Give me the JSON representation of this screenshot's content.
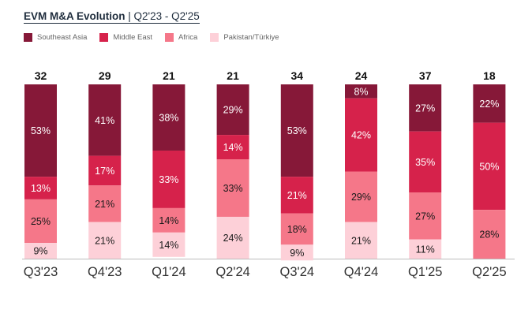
{
  "title": {
    "main": "EVM M&A Evolution",
    "separator": "|",
    "subtitle": "Q2'23 - Q2'25"
  },
  "chart_data": {
    "type": "bar",
    "stacked": true,
    "title": "EVM M&A Evolution | Q2'23 - Q2'25",
    "xlabel": "",
    "ylabel": "",
    "ylim": [
      0,
      100
    ],
    "grid": false,
    "legend_position": "top-left",
    "categories": [
      "Q3'23",
      "Q4'23",
      "Q1'24",
      "Q2'24",
      "Q3'24",
      "Q4'24",
      "Q1'25",
      "Q2'25"
    ],
    "totals": [
      32,
      29,
      21,
      21,
      34,
      24,
      37,
      18
    ],
    "series": [
      {
        "name": "Southeast Asia",
        "color": "#861838",
        "label_color": "#ffffff",
        "values": [
          53,
          41,
          38,
          29,
          53,
          8,
          27,
          22
        ]
      },
      {
        "name": "Middle East",
        "color": "#d6224b",
        "label_color": "#ffffff",
        "values": [
          13,
          17,
          33,
          14,
          21,
          42,
          35,
          50
        ]
      },
      {
        "name": "Africa",
        "color": "#f57789",
        "label_color": "#1a1a1a",
        "values": [
          25,
          21,
          14,
          33,
          18,
          29,
          27,
          28
        ]
      },
      {
        "name": "Pakistan/Türkiye",
        "color": "#fdd0d8",
        "label_color": "#1a1a1a",
        "values": [
          9,
          21,
          14,
          24,
          9,
          21,
          11,
          0
        ]
      }
    ]
  }
}
